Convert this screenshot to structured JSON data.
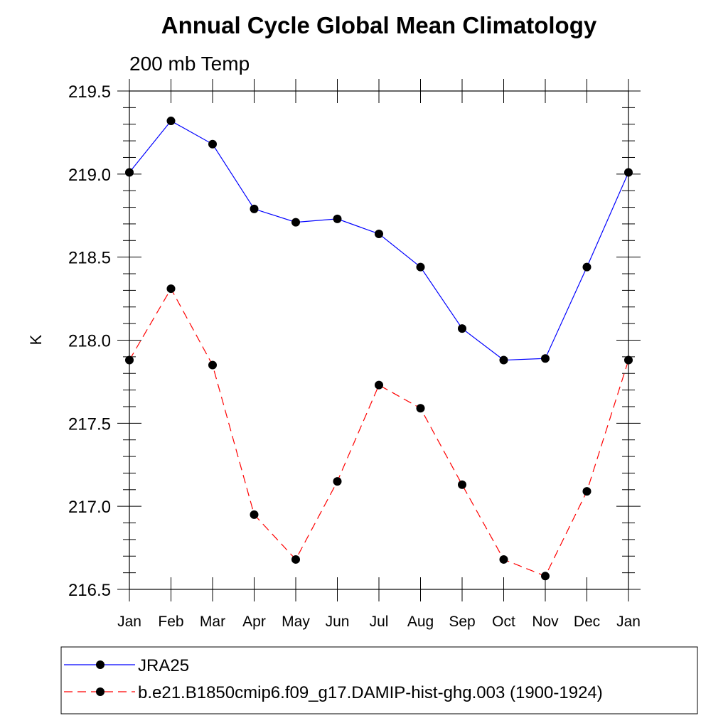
{
  "chart_data": {
    "type": "line",
    "title": "Annual Cycle Global Mean Climatology",
    "subtitle": "200 mb Temp",
    "xlabel": "",
    "ylabel": "K",
    "categories": [
      "Jan",
      "Feb",
      "Mar",
      "Apr",
      "May",
      "Jun",
      "Jul",
      "Aug",
      "Sep",
      "Oct",
      "Nov",
      "Dec",
      "Jan"
    ],
    "ylim": [
      216.5,
      219.5
    ],
    "yticks": [
      "216.5",
      "217.0",
      "217.5",
      "218.0",
      "218.5",
      "219.0",
      "219.5"
    ],
    "grid": false,
    "legend_position": "bottom",
    "series": [
      {
        "name": "JRA25",
        "color": "#0000ff",
        "dash": "solid",
        "values": [
          219.01,
          219.32,
          219.18,
          218.79,
          218.71,
          218.73,
          218.64,
          218.44,
          218.07,
          217.88,
          217.89,
          218.44,
          219.01
        ]
      },
      {
        "name": "b.e21.B1850cmip6.f09_g17.DAMIP-hist-ghg.003 (1900-1924)",
        "color": "#ff0000",
        "dash": "dashed",
        "values": [
          217.88,
          218.31,
          217.85,
          216.95,
          216.68,
          217.15,
          217.73,
          217.59,
          217.13,
          216.68,
          216.58,
          217.09,
          217.88
        ]
      }
    ]
  }
}
